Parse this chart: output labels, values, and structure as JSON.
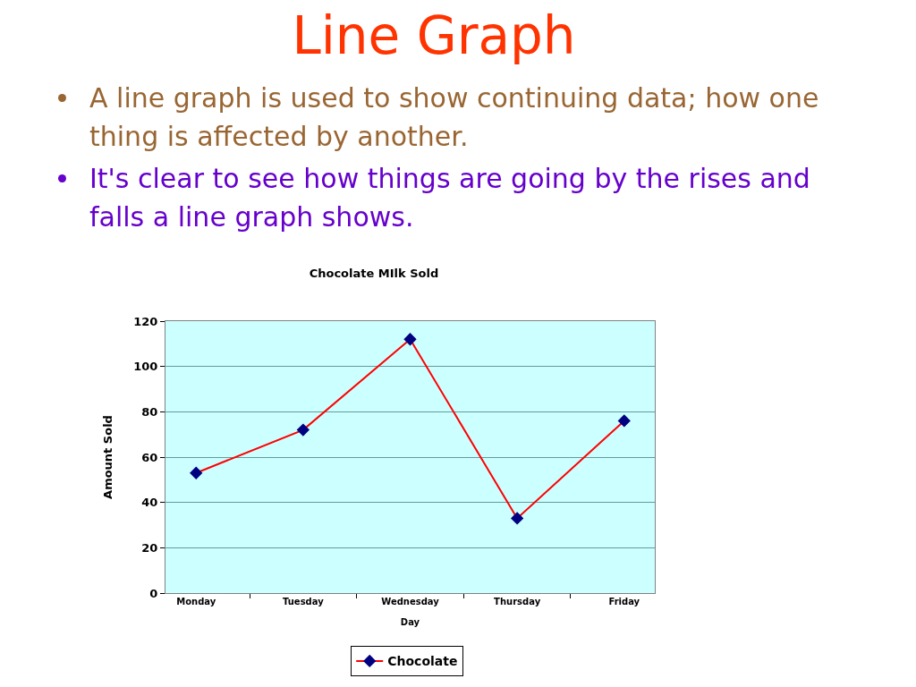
{
  "chart_data": {
    "type": "line",
    "title": "Line Graph",
    "annotations": [
      "A line graph is used to show continuing data; how one thing is affected by another.",
      "It's clear to see how things are going by the rises and falls a line graph shows."
    ],
    "subtitle": "Chocolate MIlk Sold",
    "xlabel": "Day",
    "ylabel": "Amount Sold",
    "categories": [
      "Monday",
      "Tuesday",
      "Wednesday",
      "Thursday",
      "Friday"
    ],
    "series": [
      {
        "name": "Chocolate",
        "color": "#ff0000",
        "values": [
          53,
          72,
          112,
          33,
          76
        ]
      }
    ],
    "ylim": [
      0,
      120
    ],
    "yticks": [
      0,
      20,
      40,
      60,
      80,
      100,
      120
    ],
    "grid": "y",
    "legend": "bottom",
    "marker": "diamond",
    "line_style": "solid"
  }
}
